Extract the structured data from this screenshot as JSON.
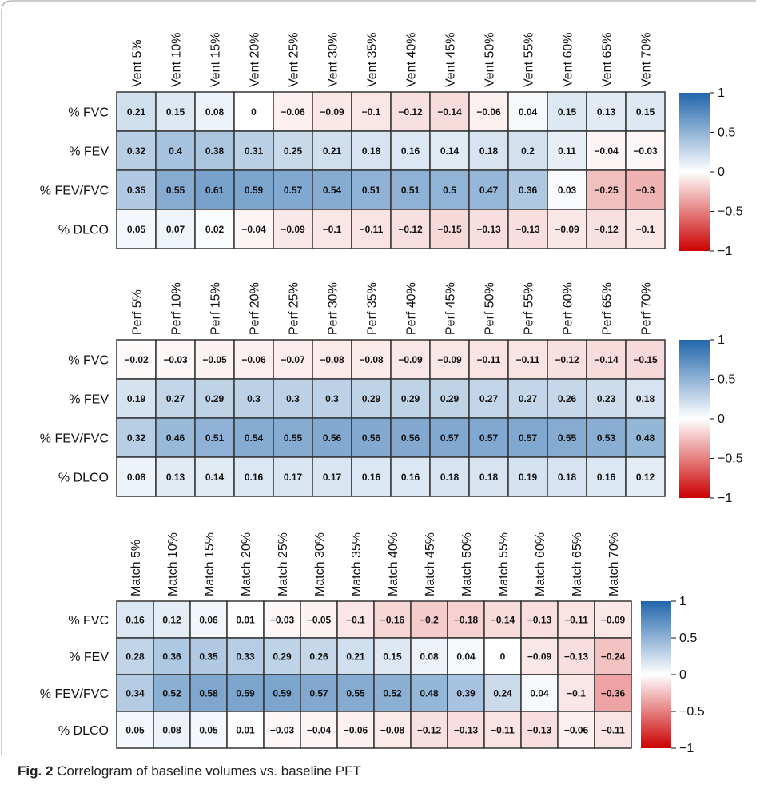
{
  "caption": {
    "label": "Fig. 2",
    "text": "Correlogram of baseline volumes vs. baseline PFT"
  },
  "colors": {
    "positive": "#2166ac",
    "neutral": "#ffffff",
    "negative": "#cc0000",
    "cell_border": "#333333"
  },
  "chart_data": [
    {
      "type": "heatmap",
      "categories": [
        "Vent 5%",
        "Vent 10%",
        "Vent 15%",
        "Vent 20%",
        "Vent 25%",
        "Vent 30%",
        "Vent 35%",
        "Vent 40%",
        "Vent 45%",
        "Vent 50%",
        "Vent 55%",
        "Vent 60%",
        "Vent 65%",
        "Vent 70%"
      ],
      "rows": [
        "% FVC",
        "% FEV",
        "% FEV/FVC",
        "% DLCO"
      ],
      "values": [
        [
          0.21,
          0.15,
          0.08,
          0,
          -0.06,
          -0.09,
          -0.1,
          -0.12,
          -0.14,
          -0.06,
          0.04,
          0.15,
          0.13,
          0.15
        ],
        [
          0.32,
          0.4,
          0.38,
          0.31,
          0.25,
          0.21,
          0.18,
          0.16,
          0.14,
          0.18,
          0.2,
          0.11,
          -0.04,
          -0.03
        ],
        [
          0.35,
          0.55,
          0.61,
          0.59,
          0.57,
          0.54,
          0.51,
          0.51,
          0.5,
          0.47,
          0.36,
          0.03,
          -0.25,
          -0.3
        ],
        [
          0.05,
          0.07,
          0.02,
          -0.04,
          -0.09,
          -0.1,
          -0.11,
          -0.12,
          -0.15,
          -0.13,
          -0.13,
          -0.09,
          -0.12,
          -0.1
        ]
      ],
      "labels": [
        [
          "0.21",
          "0.15",
          "0.08",
          "0",
          "−0.06",
          "−0.09",
          "−0.1",
          "−0.12",
          "−0.14",
          "−0.06",
          "0.04",
          "0.15",
          "0.13",
          "0.15"
        ],
        [
          "0.32",
          "0.4",
          "0.38",
          "0.31",
          "0.25",
          "0.21",
          "0.18",
          "0.16",
          "0.14",
          "0.18",
          "0.2",
          "0.11",
          "−0.04",
          "−0.03"
        ],
        [
          "0.35",
          "0.55",
          "0.61",
          "0.59",
          "0.57",
          "0.54",
          "0.51",
          "0.51",
          "0.5",
          "0.47",
          "0.36",
          "0.03",
          "−0.25",
          "−0.3"
        ],
        [
          "0.05",
          "0.07",
          "0.02",
          "−0.04",
          "−0.09",
          "−0.1",
          "−0.11",
          "−0.12",
          "−0.15",
          "−0.13",
          "−0.13",
          "−0.09",
          "−0.12",
          "−0.1"
        ]
      ],
      "colorbar": {
        "range": [
          -1,
          1
        ],
        "ticks": [
          "1",
          "0.5",
          "0",
          "−0.5",
          "−1"
        ]
      }
    },
    {
      "type": "heatmap",
      "categories": [
        "Perf 5%",
        "Perf 10%",
        "Perf 15%",
        "Perf 20%",
        "Perf 25%",
        "Perf 30%",
        "Perf 35%",
        "Perf 40%",
        "Perf 45%",
        "Perf 50%",
        "Perf 55%",
        "Perf 60%",
        "Perf 65%",
        "Perf 70%"
      ],
      "rows": [
        "% FVC",
        "% FEV",
        "% FEV/FVC",
        "% DLCO"
      ],
      "values": [
        [
          -0.02,
          -0.03,
          -0.05,
          -0.06,
          -0.07,
          -0.08,
          -0.08,
          -0.09,
          -0.09,
          -0.11,
          -0.11,
          -0.12,
          -0.14,
          -0.15
        ],
        [
          0.19,
          0.27,
          0.29,
          0.3,
          0.3,
          0.3,
          0.29,
          0.29,
          0.29,
          0.27,
          0.27,
          0.26,
          0.23,
          0.18
        ],
        [
          0.32,
          0.46,
          0.51,
          0.54,
          0.55,
          0.56,
          0.56,
          0.56,
          0.57,
          0.57,
          0.57,
          0.55,
          0.53,
          0.48
        ],
        [
          0.08,
          0.13,
          0.14,
          0.16,
          0.17,
          0.17,
          0.16,
          0.16,
          0.18,
          0.18,
          0.19,
          0.18,
          0.16,
          0.12
        ]
      ],
      "labels": [
        [
          "−0.02",
          "−0.03",
          "−0.05",
          "−0.06",
          "−0.07",
          "−0.08",
          "−0.08",
          "−0.09",
          "−0.09",
          "−0.11",
          "−0.11",
          "−0.12",
          "−0.14",
          "−0.15"
        ],
        [
          "0.19",
          "0.27",
          "0.29",
          "0.3",
          "0.3",
          "0.3",
          "0.29",
          "0.29",
          "0.29",
          "0.27",
          "0.27",
          "0.26",
          "0.23",
          "0.18"
        ],
        [
          "0.32",
          "0.46",
          "0.51",
          "0.54",
          "0.55",
          "0.56",
          "0.56",
          "0.56",
          "0.57",
          "0.57",
          "0.57",
          "0.55",
          "0.53",
          "0.48"
        ],
        [
          "0.08",
          "0.13",
          "0.14",
          "0.16",
          "0.17",
          "0.17",
          "0.16",
          "0.16",
          "0.18",
          "0.18",
          "0.19",
          "0.18",
          "0.16",
          "0.12"
        ]
      ],
      "colorbar": {
        "range": [
          -1,
          1
        ],
        "ticks": [
          "1",
          "0.5",
          "0",
          "−0.5",
          "−1"
        ]
      }
    },
    {
      "type": "heatmap",
      "categories": [
        "Match 5%",
        "Match 10%",
        "Match 15%",
        "Match 20%",
        "Match 25%",
        "Match 30%",
        "Match 35%",
        "Match 40%",
        "Match 45%",
        "Match 50%",
        "Match 55%",
        "Match 60%",
        "Match 65%",
        "Match 70%"
      ],
      "rows": [
        "% FVC",
        "% FEV",
        "% FEV/FVC",
        "% DLCO"
      ],
      "values": [
        [
          0.16,
          0.12,
          0.06,
          0.01,
          -0.03,
          -0.05,
          -0.1,
          -0.16,
          -0.2,
          -0.18,
          -0.14,
          -0.13,
          -0.11,
          -0.09
        ],
        [
          0.28,
          0.36,
          0.35,
          0.33,
          0.29,
          0.26,
          0.21,
          0.15,
          0.08,
          0.04,
          0,
          -0.09,
          -0.13,
          -0.24
        ],
        [
          0.34,
          0.52,
          0.58,
          0.59,
          0.59,
          0.57,
          0.55,
          0.52,
          0.48,
          0.39,
          0.24,
          0.04,
          -0.1,
          -0.36
        ],
        [
          0.05,
          0.08,
          0.05,
          0.01,
          -0.03,
          -0.04,
          -0.06,
          -0.08,
          -0.12,
          -0.13,
          -0.11,
          -0.13,
          -0.06,
          -0.11
        ]
      ],
      "labels": [
        [
          "0.16",
          "0.12",
          "0.06",
          "0.01",
          "−0.03",
          "−0.05",
          "−0.1",
          "−0.16",
          "−0.2",
          "−0.18",
          "−0.14",
          "−0.13",
          "−0.11",
          "−0.09"
        ],
        [
          "0.28",
          "0.36",
          "0.35",
          "0.33",
          "0.29",
          "0.26",
          "0.21",
          "0.15",
          "0.08",
          "0.04",
          "0",
          "−0.09",
          "−0.13",
          "−0.24"
        ],
        [
          "0.34",
          "0.52",
          "0.58",
          "0.59",
          "0.59",
          "0.57",
          "0.55",
          "0.52",
          "0.48",
          "0.39",
          "0.24",
          "0.04",
          "−0.1",
          "−0.36"
        ],
        [
          "0.05",
          "0.08",
          "0.05",
          "0.01",
          "−0.03",
          "−0.04",
          "−0.06",
          "−0.08",
          "−0.12",
          "−0.13",
          "−0.11",
          "−0.13",
          "−0.06",
          "−0.11"
        ]
      ],
      "colorbar": {
        "range": [
          -1,
          1
        ],
        "ticks": [
          "1",
          "0.5",
          "0",
          "−0.5",
          "−1"
        ]
      }
    }
  ]
}
